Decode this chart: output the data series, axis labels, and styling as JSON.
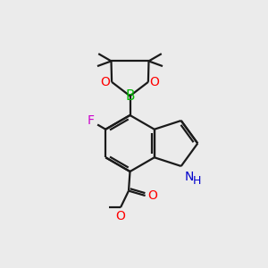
{
  "background_color": "#ebebeb",
  "bond_color": "#1a1a1a",
  "line_width": 1.6,
  "atom_colors": {
    "B": "#00bb00",
    "O": "#ff0000",
    "N": "#0000cc",
    "F": "#cc00cc"
  },
  "font_size_atom": 10,
  "font_size_small": 9
}
